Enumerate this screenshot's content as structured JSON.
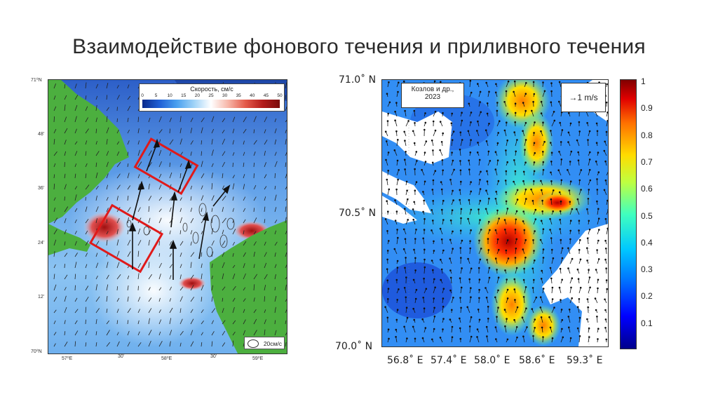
{
  "slide": {
    "title": "Взаимодействие фонового течения и приливного течения"
  },
  "left_map": {
    "lat_labels": [
      "71⁰N",
      "48'",
      "36'",
      "24'",
      "12'",
      "70⁰N"
    ],
    "lon_labels": [
      "57⁰E",
      "30'",
      "58⁰E",
      "30'",
      "59⁰E"
    ],
    "legend_title": "Скорость, см/с",
    "legend_ticks": [
      "0",
      "5",
      "10",
      "15",
      "20",
      "25",
      "30",
      "35",
      "40",
      "45",
      "50"
    ],
    "scale_label": "20см/с",
    "colors": {
      "land": "#4caf3f",
      "frame": "#e01a1a"
    }
  },
  "right_map": {
    "lat_labels": [
      "71.0˚ N",
      "70.5˚ N",
      "70.0˚ N"
    ],
    "lon_labels": [
      "56.8˚ E",
      "57.4˚ E",
      "58.0˚ E",
      "58.6˚ E",
      "59.3˚ E"
    ],
    "citation_line1": "Козлов и др.,",
    "citation_line2": "2023",
    "scale_label": "1 m/s",
    "colorbar_ticks": [
      "1",
      "0.9",
      "0.8",
      "0.7",
      "0.6",
      "0.5",
      "0.4",
      "0.3",
      "0.2",
      "0.1"
    ]
  }
}
